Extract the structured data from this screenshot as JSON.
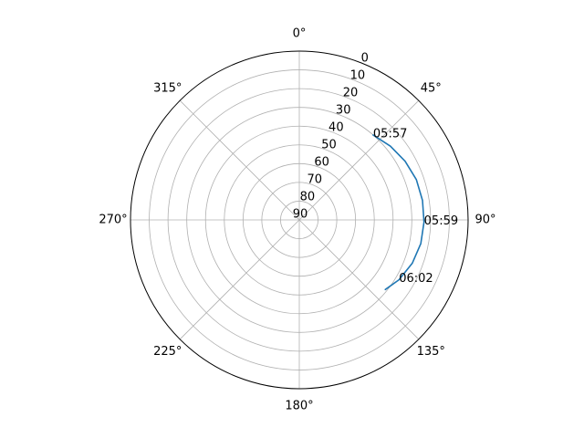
{
  "chart_data": {
    "type": "line",
    "projection": "polar",
    "theta_zero_location": "N",
    "theta_direction": "clockwise",
    "radial_axis": {
      "inverted": true,
      "rlim": [
        90,
        0
      ],
      "ticks": [
        0,
        10,
        20,
        30,
        40,
        50,
        60,
        70,
        80,
        90
      ],
      "tick_labels": [
        "0",
        "10",
        "20",
        "30",
        "40",
        "50",
        "60",
        "70",
        "80",
        "90"
      ],
      "label_angle_deg": 22.5
    },
    "angular_axis": {
      "ticks_deg": [
        0,
        45,
        90,
        135,
        180,
        225,
        270,
        315
      ],
      "tick_labels": [
        "0°",
        "45°",
        "90°",
        "135°",
        "180°",
        "225°",
        "270°",
        "315°"
      ]
    },
    "grid": true,
    "series": [
      {
        "color": "#1f77b4",
        "points": [
          {
            "az": 41,
            "el": 30
          },
          {
            "az": 51,
            "el": 27.5
          },
          {
            "az": 61,
            "el": 25.5
          },
          {
            "az": 71,
            "el": 24
          },
          {
            "az": 81,
            "el": 23.5
          },
          {
            "az": 91,
            "el": 23.5
          },
          {
            "az": 101,
            "el": 24
          },
          {
            "az": 111,
            "el": 25.5
          },
          {
            "az": 121,
            "el": 28
          },
          {
            "az": 129,
            "el": 31
          }
        ]
      }
    ],
    "annotations": [
      {
        "text": "05:57",
        "az": 41,
        "el": 30
      },
      {
        "text": "05:59",
        "az": 91,
        "el": 23.5
      },
      {
        "text": "06:02",
        "az": 121,
        "el": 28
      }
    ]
  }
}
